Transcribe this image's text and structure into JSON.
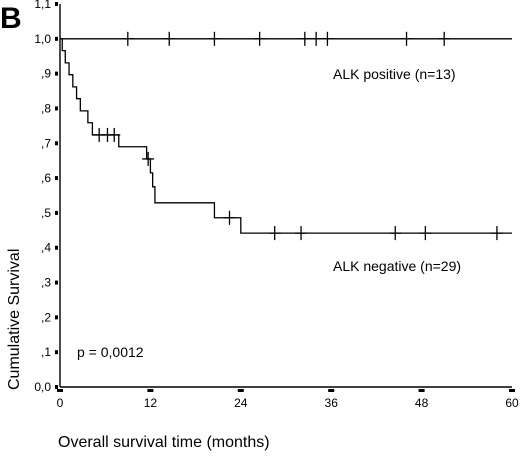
{
  "panel_label": "B",
  "chart_data": {
    "type": "line",
    "subtype": "kaplan-meier",
    "xlabel": "Overall survival time (months)",
    "ylabel": "Cumulative Survival",
    "xlim": [
      0,
      60
    ],
    "ylim": [
      0,
      1.1
    ],
    "x_ticks": [
      0,
      12,
      24,
      36,
      48,
      60
    ],
    "x_tick_labels": [
      "0",
      "12",
      "24",
      "36",
      "48",
      "60"
    ],
    "y_ticks": [
      0,
      0.1,
      0.2,
      0.3,
      0.4,
      0.5,
      0.6,
      0.7,
      0.8,
      0.9,
      1.0,
      1.1
    ],
    "y_tick_labels": [
      "0,0",
      ",1",
      ",2",
      ",3",
      ",4",
      ",5",
      ",6",
      ",7",
      ",8",
      ",9",
      "1,0",
      "1,1"
    ],
    "grid": false,
    "annotation": "p = 0,0012",
    "series": [
      {
        "name": "ALK positive (n=13)",
        "color": "#000000",
        "steps": [
          [
            0,
            1.0
          ],
          [
            60,
            1.0
          ]
        ],
        "censored": [
          [
            9,
            1.0
          ],
          [
            14.5,
            1.0
          ],
          [
            20.5,
            1.0
          ],
          [
            26.5,
            1.0
          ],
          [
            32.5,
            1.0
          ],
          [
            34,
            1.0
          ],
          [
            35.5,
            1.0
          ],
          [
            46,
            1.0
          ],
          [
            51,
            1.0
          ]
        ]
      },
      {
        "name": "ALK negative (n=29)",
        "color": "#000000",
        "steps": [
          [
            0,
            1.0
          ],
          [
            0.3,
            0.966
          ],
          [
            0.7,
            0.931
          ],
          [
            1.2,
            0.897
          ],
          [
            1.7,
            0.862
          ],
          [
            2.2,
            0.828
          ],
          [
            2.7,
            0.793
          ],
          [
            3.7,
            0.759
          ],
          [
            4.3,
            0.724
          ],
          [
            7.8,
            0.69
          ],
          [
            11.5,
            0.655
          ],
          [
            12.0,
            0.615
          ],
          [
            12.3,
            0.575
          ],
          [
            12.6,
            0.529
          ],
          [
            20.5,
            0.486
          ],
          [
            24.0,
            0.442
          ],
          [
            60,
            0.442
          ]
        ],
        "censored": [
          [
            5.2,
            0.724
          ],
          [
            6.3,
            0.724
          ],
          [
            7.2,
            0.724
          ],
          [
            11.7,
            0.655
          ],
          [
            22.5,
            0.486
          ],
          [
            28.5,
            0.442
          ],
          [
            32.0,
            0.442
          ],
          [
            44.5,
            0.442
          ],
          [
            48.5,
            0.442
          ],
          [
            58.0,
            0.442
          ]
        ]
      }
    ]
  }
}
